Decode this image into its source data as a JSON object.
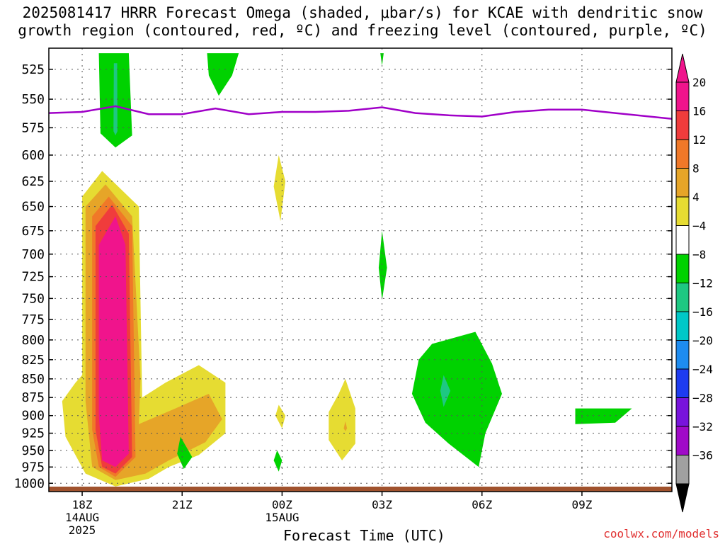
{
  "title": "2025081417 HRRR Forecast Omega (shaded, μbar/s) for KCAE with dendritic snow\ngrowth region (contoured, red, ºC) and freezing level (contoured, purple, ºC)",
  "credit": "coolwx.com/models",
  "chart_data": {
    "type": "heatmap",
    "xlabel": "Forecast Time (UTC)",
    "ylabel": "",
    "x_ticks": [
      {
        "hour": 0,
        "label": "18Z",
        "sub": [
          "14AUG",
          "2025"
        ]
      },
      {
        "hour": 3,
        "label": "21Z",
        "sub": []
      },
      {
        "hour": 6,
        "label": "00Z",
        "sub": [
          "15AUG"
        ]
      },
      {
        "hour": 9,
        "label": "03Z",
        "sub": []
      },
      {
        "hour": 12,
        "label": "06Z",
        "sub": []
      },
      {
        "hour": 15,
        "label": "09Z",
        "sub": []
      }
    ],
    "xlim": [
      -1,
      17.7
    ],
    "y_ticks": [
      525,
      550,
      575,
      600,
      625,
      650,
      675,
      700,
      725,
      750,
      775,
      800,
      825,
      850,
      875,
      900,
      925,
      950,
      975,
      1000
    ],
    "ylim": [
      1013,
      508
    ],
    "y_scale": "log",
    "grid": true,
    "colorbar": {
      "labels": [
        "20",
        "16",
        "12",
        "8",
        "4",
        "−4",
        "−8",
        "−12",
        "−16",
        "−20",
        "−24",
        "−28",
        "−32",
        "−36"
      ],
      "colors": [
        "#f0148c",
        "#f03c3c",
        "#f07828",
        "#e6a528",
        "#e6dc32",
        "#ffffff",
        "#00d200",
        "#1ec882",
        "#00c8c8",
        "#1e8cf0",
        "#1e3cf0",
        "#7814dc",
        "#a00ac8",
        "#a0a0a0"
      ],
      "top_arrow": "#f0148c",
      "bottom_arrow": "#000000"
    },
    "freezing_level": [
      {
        "hour": -1,
        "p": 562
      },
      {
        "hour": 0,
        "p": 561
      },
      {
        "hour": 1,
        "p": 556
      },
      {
        "hour": 2,
        "p": 563
      },
      {
        "hour": 3,
        "p": 563
      },
      {
        "hour": 4,
        "p": 558
      },
      {
        "hour": 5,
        "p": 563
      },
      {
        "hour": 6,
        "p": 561
      },
      {
        "hour": 7,
        "p": 561
      },
      {
        "hour": 8,
        "p": 560
      },
      {
        "hour": 9,
        "p": 557
      },
      {
        "hour": 10,
        "p": 562
      },
      {
        "hour": 11,
        "p": 564
      },
      {
        "hour": 12,
        "p": 565
      },
      {
        "hour": 13,
        "p": 561
      },
      {
        "hour": 14,
        "p": 559
      },
      {
        "hour": 15,
        "p": 559
      },
      {
        "hour": 16,
        "p": 562
      },
      {
        "hour": 17.7,
        "p": 567
      }
    ],
    "omega_regions": [
      {
        "name": "rising-yellow",
        "value": 4,
        "points": [
          [
            0,
            640
          ],
          [
            0.6,
            615
          ],
          [
            1.7,
            650
          ],
          [
            1.8,
            875
          ],
          [
            2.5,
            855
          ],
          [
            3.5,
            832
          ],
          [
            4.3,
            855
          ],
          [
            4.3,
            925
          ],
          [
            3.5,
            957
          ],
          [
            2.6,
            975
          ],
          [
            2,
            993
          ],
          [
            1,
            1005
          ],
          [
            0.1,
            985
          ],
          [
            -0.5,
            930
          ],
          [
            -0.6,
            880
          ],
          [
            -0.2,
            855
          ],
          [
            0,
            845
          ]
        ]
      },
      {
        "name": "rising-gold",
        "value": 8,
        "points": [
          [
            0.1,
            650
          ],
          [
            0.7,
            628
          ],
          [
            1.5,
            660
          ],
          [
            1.75,
            850
          ],
          [
            1.7,
            912
          ],
          [
            2.8,
            890
          ],
          [
            3.8,
            870
          ],
          [
            4.2,
            905
          ],
          [
            3.7,
            938
          ],
          [
            2.6,
            965
          ],
          [
            1.9,
            985
          ],
          [
            1,
            995
          ],
          [
            0.3,
            975
          ],
          [
            0.1,
            880
          ]
        ]
      },
      {
        "name": "rising-orange",
        "value": 12,
        "points": [
          [
            0.3,
            660
          ],
          [
            0.8,
            640
          ],
          [
            1.5,
            670
          ],
          [
            1.6,
            960
          ],
          [
            1,
            990
          ],
          [
            0.5,
            975
          ],
          [
            0.3,
            920
          ]
        ]
      },
      {
        "name": "rising-red",
        "value": 16,
        "points": [
          [
            0.4,
            670
          ],
          [
            0.9,
            648
          ],
          [
            1.4,
            678
          ],
          [
            1.5,
            960
          ],
          [
            1,
            985
          ],
          [
            0.6,
            975
          ],
          [
            0.4,
            920
          ]
        ]
      },
      {
        "name": "rising-magenta",
        "value": 20,
        "points": [
          [
            0.5,
            690
          ],
          [
            1,
            660
          ],
          [
            1.3,
            690
          ],
          [
            1.4,
            955
          ],
          [
            1,
            975
          ],
          [
            0.6,
            965
          ],
          [
            0.5,
            900
          ]
        ]
      },
      {
        "name": "sinking-green-top",
        "value": -4,
        "points": [
          [
            0.5,
            512
          ],
          [
            1.4,
            512
          ],
          [
            1.5,
            582
          ],
          [
            1,
            593
          ],
          [
            0.55,
            580
          ]
        ]
      },
      {
        "name": "sinking-teal-top",
        "value": -8,
        "points": [
          [
            0.95,
            520
          ],
          [
            1.05,
            520
          ],
          [
            1.06,
            578
          ],
          [
            1,
            582
          ],
          [
            0.94,
            578
          ]
        ]
      },
      {
        "name": "sinking-green-2",
        "value": -4,
        "points": [
          [
            3.75,
            512
          ],
          [
            4.7,
            512
          ],
          [
            4.5,
            530
          ],
          [
            4.1,
            547
          ],
          [
            3.8,
            530
          ]
        ]
      },
      {
        "name": "sinking-green-3",
        "value": -4,
        "points": [
          [
            8.95,
            512
          ],
          [
            9.05,
            512
          ],
          [
            9,
            522
          ]
        ]
      },
      {
        "name": "rising-yellow-small-1",
        "value": 4,
        "points": [
          [
            5.9,
            600
          ],
          [
            6.1,
            625
          ],
          [
            5.95,
            665
          ],
          [
            5.75,
            630
          ]
        ]
      },
      {
        "name": "sinking-green-mid",
        "value": -4,
        "points": [
          [
            9,
            675
          ],
          [
            9.15,
            715
          ],
          [
            9,
            752
          ],
          [
            8.9,
            715
          ]
        ]
      },
      {
        "name": "rising-yellow-small-2",
        "value": 4,
        "points": [
          [
            5.9,
            885
          ],
          [
            6.1,
            900
          ],
          [
            6,
            918
          ],
          [
            5.8,
            900
          ]
        ]
      },
      {
        "name": "rising-yellow-small-3",
        "value": 4,
        "points": [
          [
            7.9,
            850
          ],
          [
            8.2,
            890
          ],
          [
            8.2,
            940
          ],
          [
            7.8,
            965
          ],
          [
            7.4,
            935
          ],
          [
            7.4,
            895
          ],
          [
            7.7,
            870
          ]
        ]
      },
      {
        "name": "rising-gold-small",
        "value": 8,
        "points": [
          [
            7.9,
            908
          ],
          [
            7.95,
            918
          ],
          [
            7.9,
            922
          ],
          [
            7.85,
            918
          ]
        ]
      },
      {
        "name": "sinking-green-big",
        "value": -4,
        "points": [
          [
            10.5,
            805
          ],
          [
            11.8,
            790
          ],
          [
            12.3,
            830
          ],
          [
            12.6,
            870
          ],
          [
            12.1,
            925
          ],
          [
            11.9,
            975
          ],
          [
            11.0,
            940
          ],
          [
            10.3,
            910
          ],
          [
            9.9,
            870
          ],
          [
            10.1,
            825
          ]
        ]
      },
      {
        "name": "sinking-teal-small",
        "value": -8,
        "points": [
          [
            10.85,
            845
          ],
          [
            11.05,
            866
          ],
          [
            10.85,
            888
          ],
          [
            10.75,
            866
          ]
        ]
      },
      {
        "name": "sinking-green-4",
        "value": -4,
        "points": [
          [
            2.95,
            930
          ],
          [
            3.3,
            960
          ],
          [
            3.05,
            978
          ],
          [
            2.85,
            955
          ]
        ]
      },
      {
        "name": "sinking-green-5",
        "value": -4,
        "points": [
          [
            5.85,
            950
          ],
          [
            6,
            965
          ],
          [
            5.9,
            982
          ],
          [
            5.75,
            965
          ]
        ]
      },
      {
        "name": "sinking-green-6",
        "value": -4,
        "points": [
          [
            14.8,
            890
          ],
          [
            16.5,
            890
          ],
          [
            16,
            910
          ],
          [
            14.8,
            912
          ]
        ]
      }
    ]
  }
}
